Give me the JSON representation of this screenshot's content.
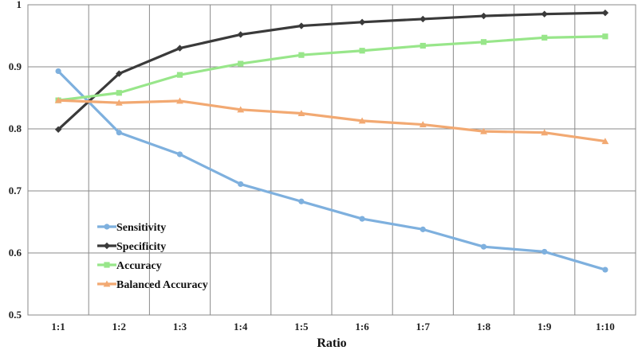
{
  "chart_data": {
    "type": "line",
    "title": "",
    "xlabel": "Ratio",
    "ylabel": "",
    "categories": [
      "1:1",
      "1:2",
      "1:3",
      "1:4",
      "1:5",
      "1:6",
      "1:7",
      "1:8",
      "1:9",
      "1:10"
    ],
    "ylim": [
      0.5,
      1.0
    ],
    "yticks": [
      "0.5",
      "0.6",
      "0.7",
      "0.8",
      "0.9",
      "1"
    ],
    "grid": true,
    "legend_position": "bottom-left",
    "series": [
      {
        "name": "Sensitivity",
        "color": "#7eb0de",
        "marker": "circle",
        "values": [
          0.893,
          0.794,
          0.759,
          0.711,
          0.683,
          0.655,
          0.638,
          0.61,
          0.602,
          0.573
        ]
      },
      {
        "name": "Specificity",
        "color": "#3a3a3a",
        "marker": "diamond",
        "values": [
          0.799,
          0.889,
          0.93,
          0.952,
          0.966,
          0.972,
          0.977,
          0.982,
          0.985,
          0.987
        ]
      },
      {
        "name": "Accuracy",
        "color": "#98e68a",
        "marker": "square",
        "values": [
          0.846,
          0.858,
          0.887,
          0.905,
          0.919,
          0.926,
          0.934,
          0.94,
          0.947,
          0.949
        ]
      },
      {
        "name": "Balanced Accuracy",
        "color": "#f2a972",
        "marker": "triangle",
        "values": [
          0.846,
          0.842,
          0.845,
          0.831,
          0.825,
          0.813,
          0.807,
          0.796,
          0.794,
          0.78
        ]
      }
    ]
  }
}
